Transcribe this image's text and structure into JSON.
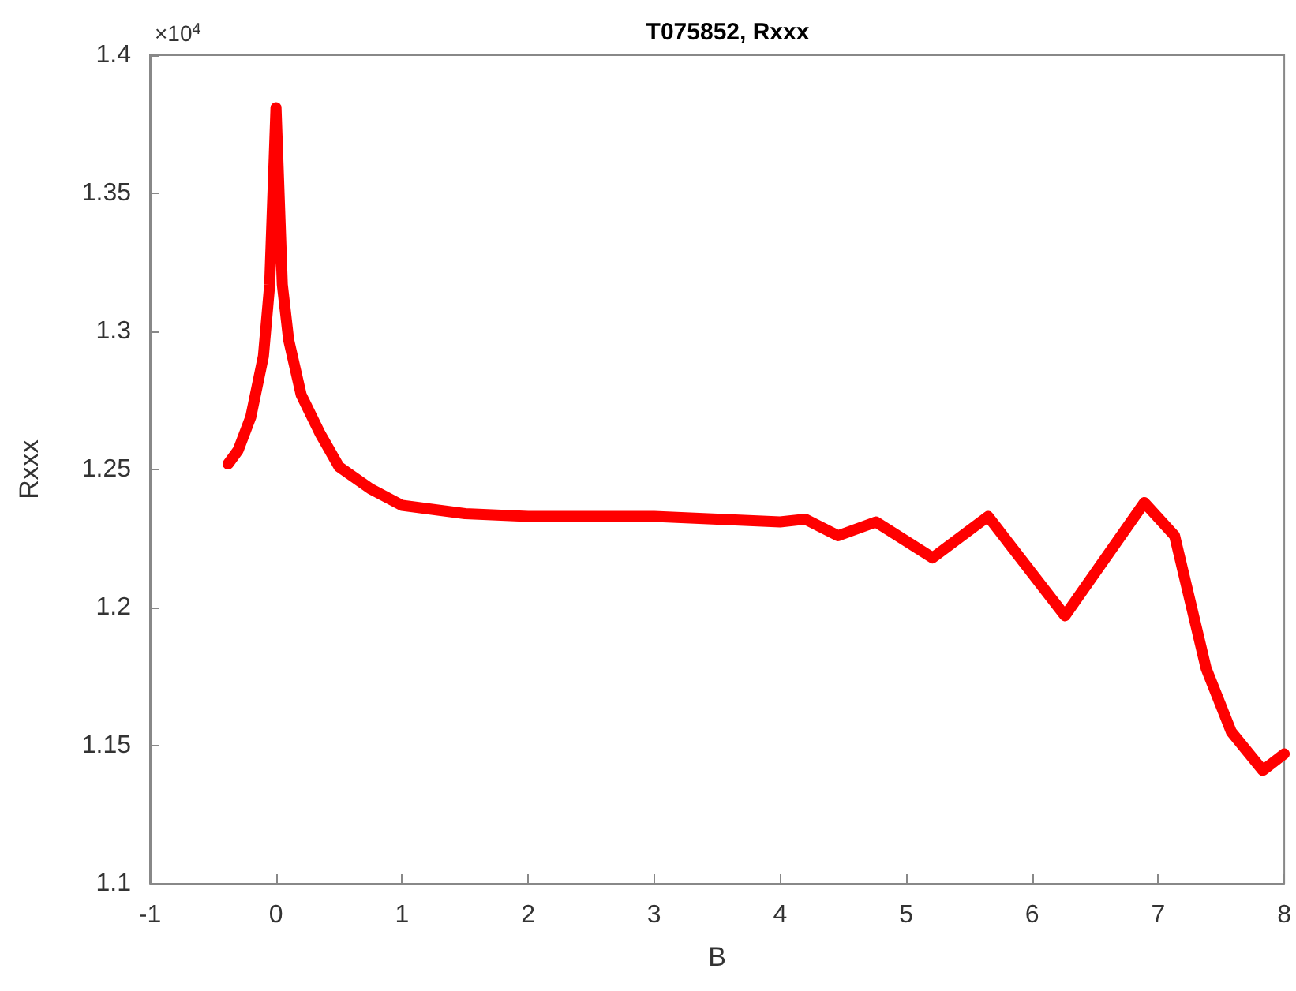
{
  "chart_data": {
    "type": "line",
    "title": "T075852, Rxxx",
    "xlabel": "B",
    "ylabel": "Rxxx",
    "annotations": [
      "×10$^{4}$"
    ],
    "series": [
      {
        "color": "#ff0000",
        "x": [
          -0.38,
          -0.3,
          -0.2,
          -0.1,
          -0.05,
          0,
          0.05,
          0.1,
          0.2,
          0.35,
          0.5,
          0.75,
          1,
          1.5,
          2,
          3,
          4,
          4.2,
          4.46,
          4.76,
          5.21,
          5.65,
          6.26,
          6.89,
          7.13,
          7.38,
          7.58,
          7.83,
          8.0
        ],
        "values": [
          1.252,
          1.257,
          1.269,
          1.291,
          1.317,
          1.381,
          1.317,
          1.297,
          1.277,
          1.263,
          1.251,
          1.243,
          1.237,
          1.234,
          1.233,
          1.233,
          1.231,
          1.232,
          1.226,
          1.231,
          1.218,
          1.233,
          1.197,
          1.238,
          1.226,
          1.178,
          1.155,
          1.141,
          1.147
        ]
      }
    ],
    "xlim": [
      -1,
      8
    ],
    "xticks": [
      -1,
      0,
      1,
      2,
      3,
      4,
      5,
      6,
      7,
      8
    ],
    "ylim": [
      1.1,
      1.4
    ],
    "yticks": [
      1.1,
      1.15,
      1.2,
      1.25,
      1.3,
      1.35,
      1.4
    ],
    "grid": false,
    "marker": "none",
    "line_style": "solid"
  }
}
